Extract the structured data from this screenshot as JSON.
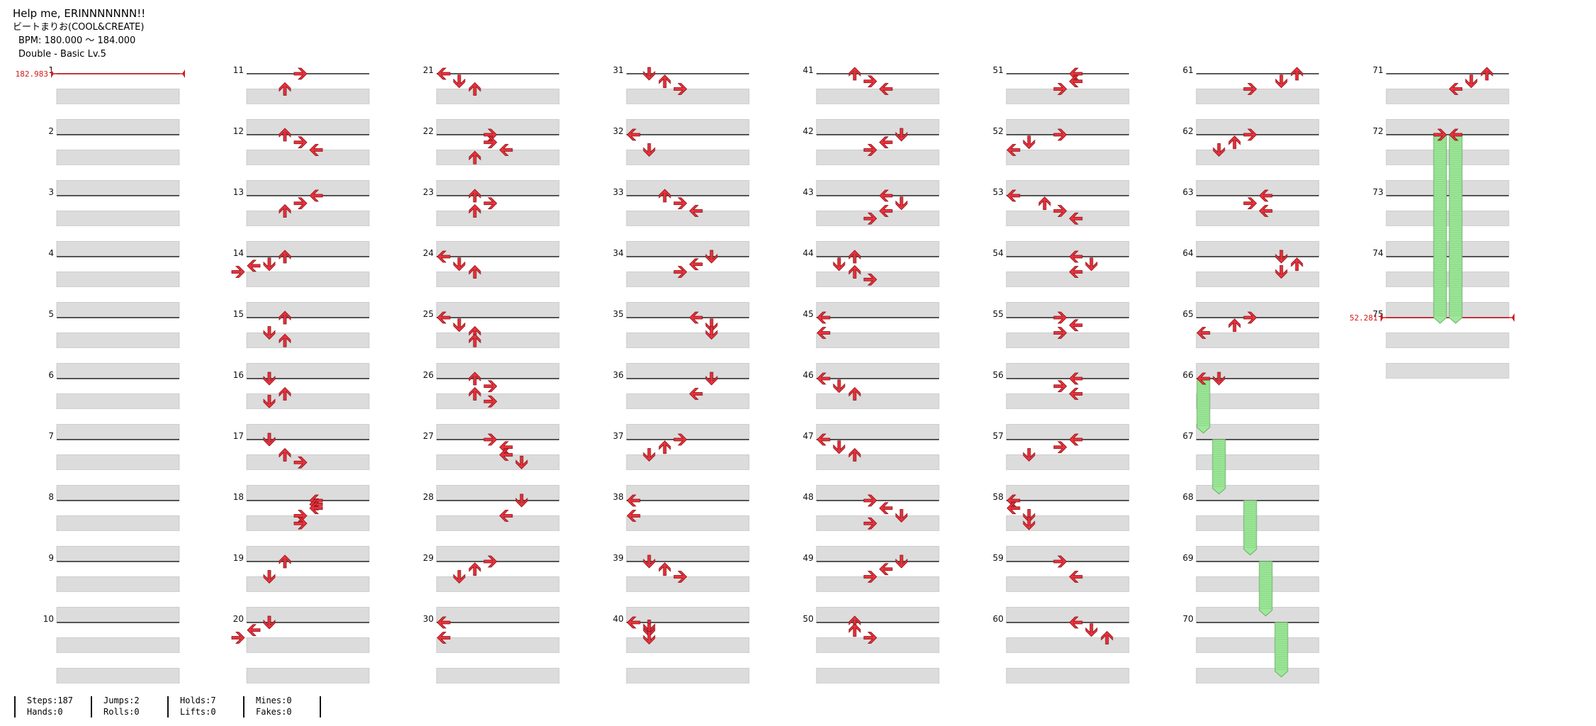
{
  "song": {
    "title": "Help me, ERINNNNNNN!!",
    "artist": "ビートまりお(COOL&CREATE)",
    "bpm_text": "BPM: 180.000 ～ 184.000",
    "difficulty_text": "Double - Basic  Lv.5"
  },
  "bpm_markers": [
    {
      "measure": 1,
      "label": "182.983"
    },
    {
      "measure": 75,
      "label": "52.281"
    }
  ],
  "measure_count": 75,
  "notes": [
    [
      11,
      0,
      3
    ],
    [
      11,
      1,
      2
    ],
    [
      12,
      0,
      2
    ],
    [
      12,
      0.5,
      3
    ],
    [
      12,
      1,
      4
    ],
    [
      13,
      0,
      4
    ],
    [
      13,
      0.5,
      3
    ],
    [
      13,
      1,
      2
    ],
    [
      14,
      0,
      2
    ],
    [
      14,
      0.5,
      1
    ],
    [
      14,
      0.6,
      0
    ],
    [
      14,
      1,
      -1
    ],
    [
      15,
      0,
      2
    ],
    [
      15,
      1,
      1
    ],
    [
      15,
      1.5,
      2
    ],
    [
      16,
      0,
      1
    ],
    [
      16,
      1,
      2
    ],
    [
      16,
      1.5,
      1
    ],
    [
      17,
      0,
      1
    ],
    [
      17,
      1,
      2
    ],
    [
      17,
      1.5,
      3
    ],
    [
      18,
      0,
      4
    ],
    [
      18,
      0.25,
      4
    ],
    [
      18,
      0.5,
      4
    ],
    [
      18,
      1,
      3
    ],
    [
      18,
      1.5,
      3
    ],
    [
      19,
      0,
      2
    ],
    [
      19,
      1,
      1
    ],
    [
      20,
      0,
      1
    ],
    [
      20,
      0.5,
      0
    ],
    [
      20,
      1,
      -1
    ],
    [
      21,
      0,
      0
    ],
    [
      21,
      0.5,
      1
    ],
    [
      21,
      1,
      2
    ],
    [
      22,
      0,
      3
    ],
    [
      22,
      0.5,
      3
    ],
    [
      22,
      1,
      4
    ],
    [
      22,
      1.5,
      2
    ],
    [
      23,
      0,
      2
    ],
    [
      23,
      0.5,
      3
    ],
    [
      23,
      1,
      2
    ],
    [
      24,
      0,
      0
    ],
    [
      24,
      0.5,
      1
    ],
    [
      24,
      1,
      2
    ],
    [
      25,
      0,
      0
    ],
    [
      25,
      0.5,
      1
    ],
    [
      25,
      1,
      2
    ],
    [
      25,
      1.5,
      2
    ],
    [
      26,
      0,
      2
    ],
    [
      26,
      0.5,
      3
    ],
    [
      26,
      1,
      2
    ],
    [
      26,
      1.5,
      3
    ],
    [
      27,
      0,
      3
    ],
    [
      27,
      0.5,
      4
    ],
    [
      27,
      1,
      4
    ],
    [
      27,
      1.5,
      5
    ],
    [
      28,
      0,
      5
    ],
    [
      28,
      1,
      4
    ],
    [
      29,
      0,
      3
    ],
    [
      29,
      0.5,
      2
    ],
    [
      29,
      1,
      1
    ],
    [
      30,
      0,
      0
    ],
    [
      30,
      1,
      0
    ],
    [
      31,
      0,
      1
    ],
    [
      31,
      0.5,
      2
    ],
    [
      31,
      1,
      3
    ],
    [
      32,
      0,
      0
    ],
    [
      32,
      1,
      1
    ],
    [
      33,
      0,
      2
    ],
    [
      33,
      0.5,
      3
    ],
    [
      33,
      1,
      4
    ],
    [
      34,
      0,
      5
    ],
    [
      34,
      0.5,
      4
    ],
    [
      34,
      1,
      3
    ],
    [
      35,
      0,
      4
    ],
    [
      35,
      0.5,
      5
    ],
    [
      35,
      1,
      5
    ],
    [
      36,
      0,
      5
    ],
    [
      36,
      1,
      4
    ],
    [
      37,
      0,
      3
    ],
    [
      37,
      0.5,
      2
    ],
    [
      37,
      1,
      1
    ],
    [
      38,
      0,
      0
    ],
    [
      38,
      1,
      0
    ],
    [
      39,
      0,
      1
    ],
    [
      39,
      0.5,
      2
    ],
    [
      39,
      1,
      3
    ],
    [
      40,
      0,
      0
    ],
    [
      40,
      0.25,
      1
    ],
    [
      40,
      0.5,
      1
    ],
    [
      40,
      1,
      1
    ],
    [
      41,
      0,
      2
    ],
    [
      41,
      0.5,
      3
    ],
    [
      41,
      1,
      4
    ],
    [
      42,
      0,
      5
    ],
    [
      42,
      0.5,
      4
    ],
    [
      42,
      1,
      3
    ],
    [
      43,
      0,
      4
    ],
    [
      43,
      0.5,
      5
    ],
    [
      43,
      1,
      4
    ],
    [
      43,
      1.5,
      3
    ],
    [
      44,
      0,
      2
    ],
    [
      44,
      0.5,
      1
    ],
    [
      44,
      1,
      2
    ],
    [
      44,
      1.5,
      3
    ],
    [
      45,
      0,
      0
    ],
    [
      45,
      1,
      0
    ],
    [
      46,
      0,
      0
    ],
    [
      46,
      0.5,
      1
    ],
    [
      46,
      1,
      2
    ],
    [
      47,
      0,
      0
    ],
    [
      47,
      0.5,
      1
    ],
    [
      47,
      1,
      2
    ],
    [
      48,
      0,
      3
    ],
    [
      48,
      0.5,
      4
    ],
    [
      48,
      1,
      5
    ],
    [
      48,
      1.5,
      3
    ],
    [
      49,
      0,
      5
    ],
    [
      49,
      0.5,
      4
    ],
    [
      49,
      1,
      3
    ],
    [
      50,
      0,
      2
    ],
    [
      50,
      0.5,
      2
    ],
    [
      50,
      1,
      3
    ],
    [
      51,
      0,
      4
    ],
    [
      51,
      0.5,
      4
    ],
    [
      51,
      1,
      3
    ],
    [
      52,
      0,
      3
    ],
    [
      52,
      0.5,
      1
    ],
    [
      52,
      1,
      0
    ],
    [
      53,
      0,
      0
    ],
    [
      53,
      0.5,
      2
    ],
    [
      53,
      1,
      3
    ],
    [
      53,
      1.5,
      4
    ],
    [
      54,
      0,
      4
    ],
    [
      54,
      0.5,
      5
    ],
    [
      54,
      1,
      4
    ],
    [
      55,
      0,
      3
    ],
    [
      55,
      0.5,
      4
    ],
    [
      55,
      1,
      3
    ],
    [
      56,
      0,
      4
    ],
    [
      56,
      0.5,
      3
    ],
    [
      56,
      1,
      4
    ],
    [
      57,
      0,
      4
    ],
    [
      57,
      0.5,
      3
    ],
    [
      57,
      1,
      1
    ],
    [
      58,
      0,
      0
    ],
    [
      58,
      0.5,
      0
    ],
    [
      58,
      1,
      1
    ],
    [
      58,
      1.5,
      1
    ],
    [
      59,
      0,
      3
    ],
    [
      59,
      1,
      4
    ],
    [
      60,
      0,
      4
    ],
    [
      60,
      0.5,
      5
    ],
    [
      60,
      1,
      6
    ],
    [
      61,
      0,
      6
    ],
    [
      61,
      0.5,
      5
    ],
    [
      61,
      1,
      3
    ],
    [
      62,
      0,
      3
    ],
    [
      62,
      0.5,
      2
    ],
    [
      62,
      1,
      1
    ],
    [
      63,
      0,
      4
    ],
    [
      63,
      0.5,
      3
    ],
    [
      63,
      1,
      4
    ],
    [
      64,
      0,
      5
    ],
    [
      64,
      0.5,
      6
    ],
    [
      64,
      1,
      5
    ],
    [
      65,
      0,
      3
    ],
    [
      65,
      0.5,
      2
    ],
    [
      65,
      1,
      0
    ],
    [
      66,
      0,
      1
    ],
    [
      66,
      0,
      0
    ],
    [
      71,
      0,
      6
    ],
    [
      71,
      0.5,
      5
    ],
    [
      71,
      1,
      4
    ],
    [
      72,
      0,
      3
    ],
    [
      72,
      0,
      4
    ]
  ],
  "holds": [
    [
      66,
      0,
      0,
      0.8
    ],
    [
      67,
      0,
      1,
      0.8
    ],
    [
      68,
      0,
      3,
      0.8
    ],
    [
      69,
      0,
      4,
      0.8
    ],
    [
      70,
      0,
      5,
      0.8
    ],
    [
      72,
      0,
      3,
      3
    ],
    [
      72,
      0,
      4,
      3
    ]
  ],
  "stats": {
    "steps": "Steps:187",
    "hands": "Hands:0",
    "jumps": "Jumps:2",
    "rolls": "Rolls:0",
    "holds": "Holds:7",
    "lifts": "Lifts:0",
    "mines": "Mines:0",
    "fakes": "Fakes:0"
  },
  "colors": {
    "arrow": "#e8323c",
    "hold": "#9ee89a",
    "band": "#dcdcdc",
    "bpm": "#d11a1a"
  }
}
